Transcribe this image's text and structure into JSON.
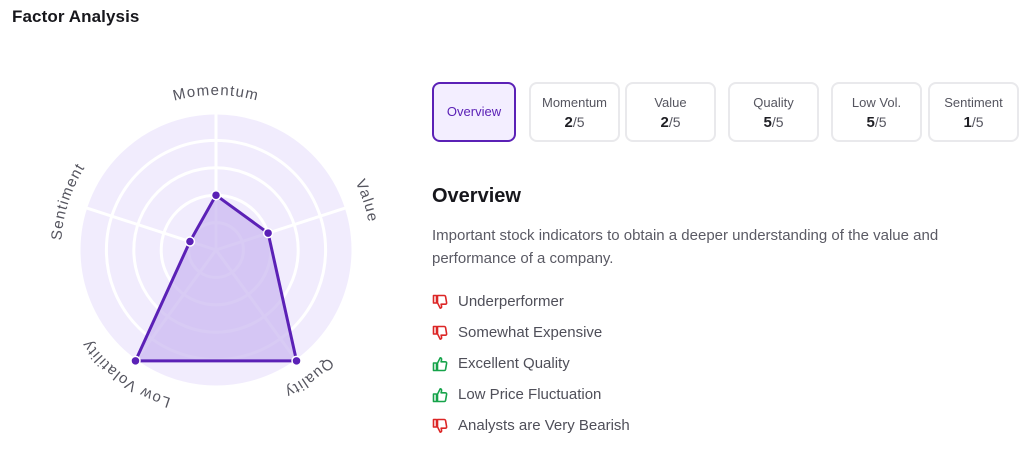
{
  "header": {
    "title": "Factor Analysis"
  },
  "radar": {
    "axes": [
      {
        "name": "Momentum",
        "score": 2
      },
      {
        "name": "Value",
        "score": 2
      },
      {
        "name": "Quality",
        "score": 5
      },
      {
        "name": "Low Volatility",
        "score": 5
      },
      {
        "name": "Sentiment",
        "score": 1
      }
    ],
    "max": 5,
    "colors": {
      "background": "#f1ecfd",
      "grid": "#ffffff",
      "fill": "#cbbaf0",
      "stroke": "#5b21b6",
      "label": "#55555f"
    }
  },
  "tabs": [
    {
      "label": "Overview",
      "active": true
    },
    {
      "label": "Momentum",
      "score": "2",
      "of": "/5"
    },
    {
      "label": "Value",
      "score": "2",
      "of": "/5"
    },
    {
      "label": "Quality",
      "score": "5",
      "of": "/5"
    },
    {
      "label": "Low Vol.",
      "score": "5",
      "of": "/5"
    },
    {
      "label": "Sentiment",
      "score": "1",
      "of": "/5"
    }
  ],
  "overview": {
    "title": "Overview",
    "description": "Important stock indicators to obtain a deeper understanding of the value and performance of a company.",
    "indicators": [
      {
        "text": "Underperformer",
        "sentiment": "negative",
        "icon": "thumbs-down-icon"
      },
      {
        "text": "Somewhat Expensive",
        "sentiment": "negative",
        "icon": "thumbs-down-icon"
      },
      {
        "text": "Excellent Quality",
        "sentiment": "positive",
        "icon": "thumbs-up-icon"
      },
      {
        "text": "Low Price Fluctuation",
        "sentiment": "positive",
        "icon": "thumbs-up-icon"
      },
      {
        "text": "Analysts are Very Bearish",
        "sentiment": "negative",
        "icon": "thumbs-down-icon"
      }
    ],
    "colors": {
      "positive": "#16a34a",
      "negative": "#dc2626"
    }
  }
}
